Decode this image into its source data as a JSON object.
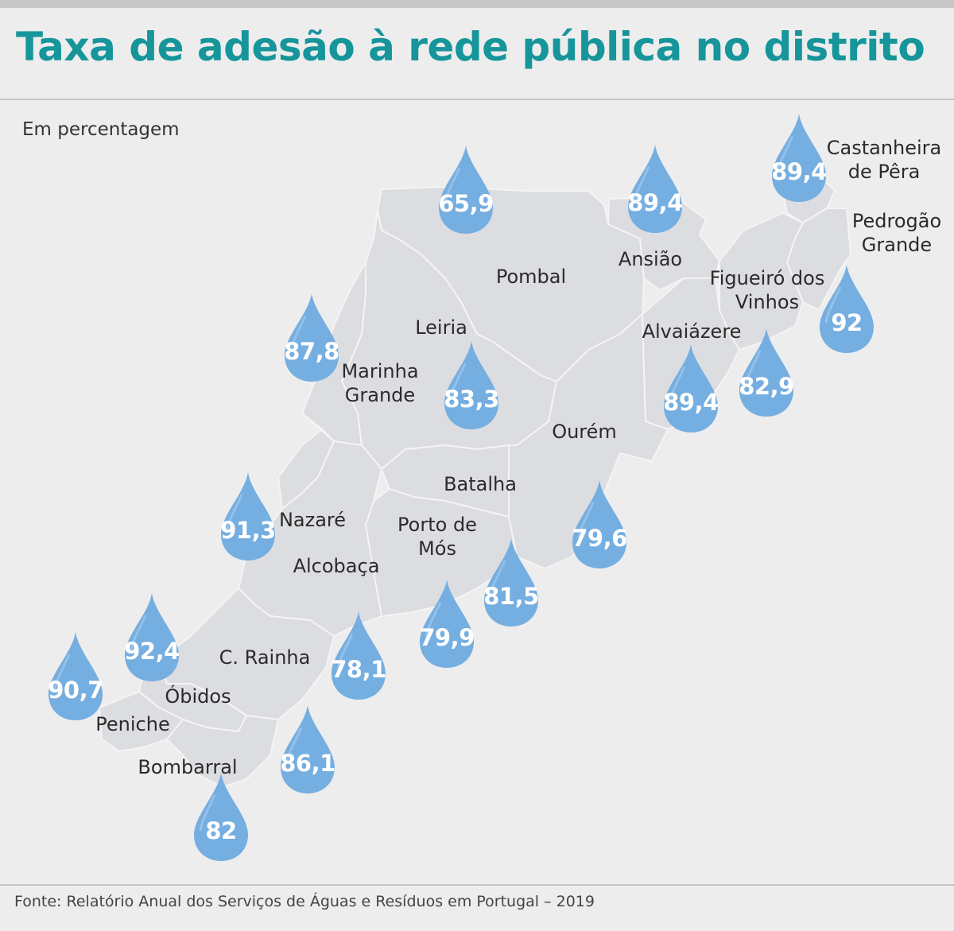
{
  "title": "Taxa de adesão à rede pública no distrito",
  "subtitle": "Em percentagem",
  "source": "Fonte: Relatório Anual dos Serviços de Águas e Resíduos em Portugal – 2019",
  "colors": {
    "title": "#16959a",
    "drop": "#75aee0",
    "map": "#dcdde0"
  },
  "municipalities": [
    {
      "id": "pombal",
      "name": "Pombal",
      "value": "65,9"
    },
    {
      "id": "ansiao",
      "name": "Ansião",
      "value": "89,4"
    },
    {
      "id": "castanheira",
      "name": "Castanheira de Pêra",
      "value": "89,4"
    },
    {
      "id": "pedrogao",
      "name": "Pedrogão Grande",
      "value": "92"
    },
    {
      "id": "figueiro",
      "name": "Figueiró dos Vinhos",
      "value": "82,9"
    },
    {
      "id": "alvaiazere",
      "name": "Alvaiázere",
      "value": "89,4"
    },
    {
      "id": "leiria",
      "name": "Leiria",
      "value": "83,3"
    },
    {
      "id": "marinha",
      "name": "Marinha Grande",
      "value": "87,8"
    },
    {
      "id": "ourem",
      "name": "Ourém",
      "value": "79,6"
    },
    {
      "id": "batalha",
      "name": "Batalha",
      "value": "81,5"
    },
    {
      "id": "porto",
      "name": "Porto de Mós",
      "value": "79,9"
    },
    {
      "id": "nazare",
      "name": "Nazaré",
      "value": "91,3"
    },
    {
      "id": "alcobaca",
      "name": "Alcobaça",
      "value": "78,1"
    },
    {
      "id": "crainha",
      "name": "C. Rainha",
      "value": "86,1"
    },
    {
      "id": "obidos",
      "name": "Óbidos",
      "value": "92,4"
    },
    {
      "id": "peniche",
      "name": "Peniche",
      "value": "90,7"
    },
    {
      "id": "bombarral",
      "name": "Bombarral",
      "value": "82"
    }
  ]
}
